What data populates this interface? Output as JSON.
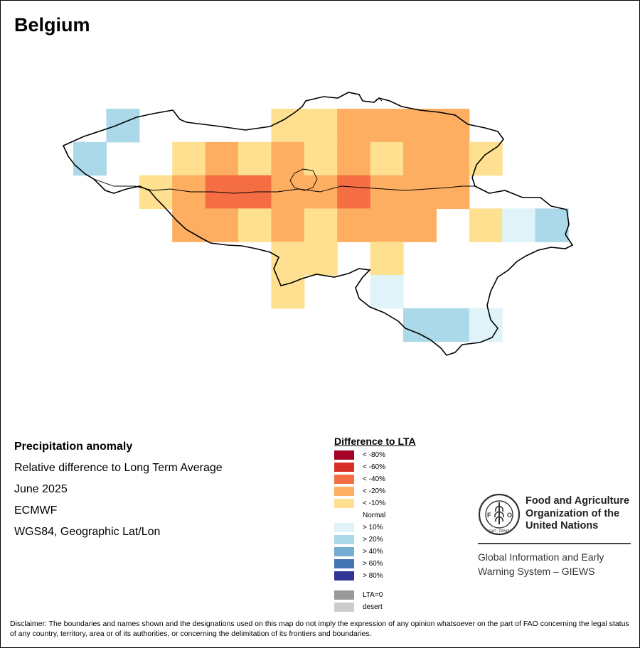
{
  "title": "Belgium",
  "info": {
    "variable": "Precipitation anomaly",
    "measure": "Relative difference to Long Term Average",
    "period": "June 2025",
    "source": "ECMWF",
    "projection": "WGS84, Geographic Lat/Lon"
  },
  "legend": {
    "title": "Difference to LTA",
    "items": [
      {
        "label": "< -80%",
        "color": "#a50026"
      },
      {
        "label": "< -60%",
        "color": "#d73027"
      },
      {
        "label": "< -40%",
        "color": "#f46d43"
      },
      {
        "label": "< -20%",
        "color": "#fdae61"
      },
      {
        "label": "< -10%",
        "color": "#fee090"
      },
      {
        "label": "Normal",
        "color": "#ffffff"
      },
      {
        "label": "> 10%",
        "color": "#e0f3f8"
      },
      {
        "label": "> 20%",
        "color": "#abd9e9"
      },
      {
        "label": "> 40%",
        "color": "#74add1"
      },
      {
        "label": "> 60%",
        "color": "#4575b4"
      },
      {
        "label": "> 80%",
        "color": "#313695"
      },
      {
        "label": "LTA=0",
        "color": "#999999"
      },
      {
        "label": "desert",
        "color": "#cccccc"
      }
    ]
  },
  "organization": {
    "name_line1": "Food and Agriculture",
    "name_line2": "Organization of the",
    "name_line3": "United Nations",
    "system_line1": "Global Information and Early",
    "system_line2": "Warning System – GIEWS",
    "logo_text": "FAO",
    "logo_motto": "FIAT PANIS"
  },
  "disclaimer": "Disclaimer: The boundaries and names shown and the designations used on this map do not imply the expression of any opinion whatsoever on the part of FAO concerning the legal status of any country, territory, area or of its authorities, or concerning the delimitation of its frontiers and boundaries.",
  "map_cells": [
    {
      "row": 0,
      "col": 1,
      "class": "> 20%"
    },
    {
      "row": 0,
      "col": 6,
      "class": "< -10%"
    },
    {
      "row": 0,
      "col": 7,
      "class": "< -10%"
    },
    {
      "row": 0,
      "col": 8,
      "class": "< -20%"
    },
    {
      "row": 0,
      "col": 9,
      "class": "< -20%"
    },
    {
      "row": 0,
      "col": 10,
      "class": "< -20%"
    },
    {
      "row": 0,
      "col": 11,
      "class": "< -20%"
    },
    {
      "row": 1,
      "col": 0,
      "class": "> 20%"
    },
    {
      "row": 1,
      "col": 3,
      "class": "< -10%"
    },
    {
      "row": 1,
      "col": 4,
      "class": "< -20%"
    },
    {
      "row": 1,
      "col": 5,
      "class": "< -10%"
    },
    {
      "row": 1,
      "col": 6,
      "class": "< -20%"
    },
    {
      "row": 1,
      "col": 7,
      "class": "< -10%"
    },
    {
      "row": 1,
      "col": 8,
      "class": "< -20%"
    },
    {
      "row": 1,
      "col": 9,
      "class": "< -10%"
    },
    {
      "row": 1,
      "col": 10,
      "class": "< -20%"
    },
    {
      "row": 1,
      "col": 11,
      "class": "< -20%"
    },
    {
      "row": 1,
      "col": 12,
      "class": "< -10%"
    },
    {
      "row": 2,
      "col": 2,
      "class": "< -10%"
    },
    {
      "row": 2,
      "col": 3,
      "class": "< -20%"
    },
    {
      "row": 2,
      "col": 4,
      "class": "< -40%"
    },
    {
      "row": 2,
      "col": 5,
      "class": "< -40%"
    },
    {
      "row": 2,
      "col": 6,
      "class": "< -20%"
    },
    {
      "row": 2,
      "col": 7,
      "class": "< -20%"
    },
    {
      "row": 2,
      "col": 8,
      "class": "< -40%"
    },
    {
      "row": 2,
      "col": 9,
      "class": "< -20%"
    },
    {
      "row": 2,
      "col": 10,
      "class": "< -20%"
    },
    {
      "row": 2,
      "col": 11,
      "class": "< -20%"
    },
    {
      "row": 3,
      "col": 3,
      "class": "< -20%"
    },
    {
      "row": 3,
      "col": 4,
      "class": "< -20%"
    },
    {
      "row": 3,
      "col": 5,
      "class": "< -10%"
    },
    {
      "row": 3,
      "col": 6,
      "class": "< -20%"
    },
    {
      "row": 3,
      "col": 7,
      "class": "< -10%"
    },
    {
      "row": 3,
      "col": 8,
      "class": "< -20%"
    },
    {
      "row": 3,
      "col": 9,
      "class": "< -20%"
    },
    {
      "row": 3,
      "col": 10,
      "class": "< -20%"
    },
    {
      "row": 3,
      "col": 12,
      "class": "< -10%"
    },
    {
      "row": 3,
      "col": 13,
      "class": "> 10%"
    },
    {
      "row": 3,
      "col": 14,
      "class": "> 20%"
    },
    {
      "row": 4,
      "col": 6,
      "class": "< -10%"
    },
    {
      "row": 4,
      "col": 7,
      "class": "< -10%"
    },
    {
      "row": 4,
      "col": 9,
      "class": "< -10%"
    },
    {
      "row": 5,
      "col": 6,
      "class": "< -10%"
    },
    {
      "row": 5,
      "col": 9,
      "class": "> 10%"
    },
    {
      "row": 6,
      "col": 10,
      "class": "> 20%"
    },
    {
      "row": 6,
      "col": 11,
      "class": "> 20%"
    },
    {
      "row": 6,
      "col": 12,
      "class": "> 10%"
    }
  ]
}
